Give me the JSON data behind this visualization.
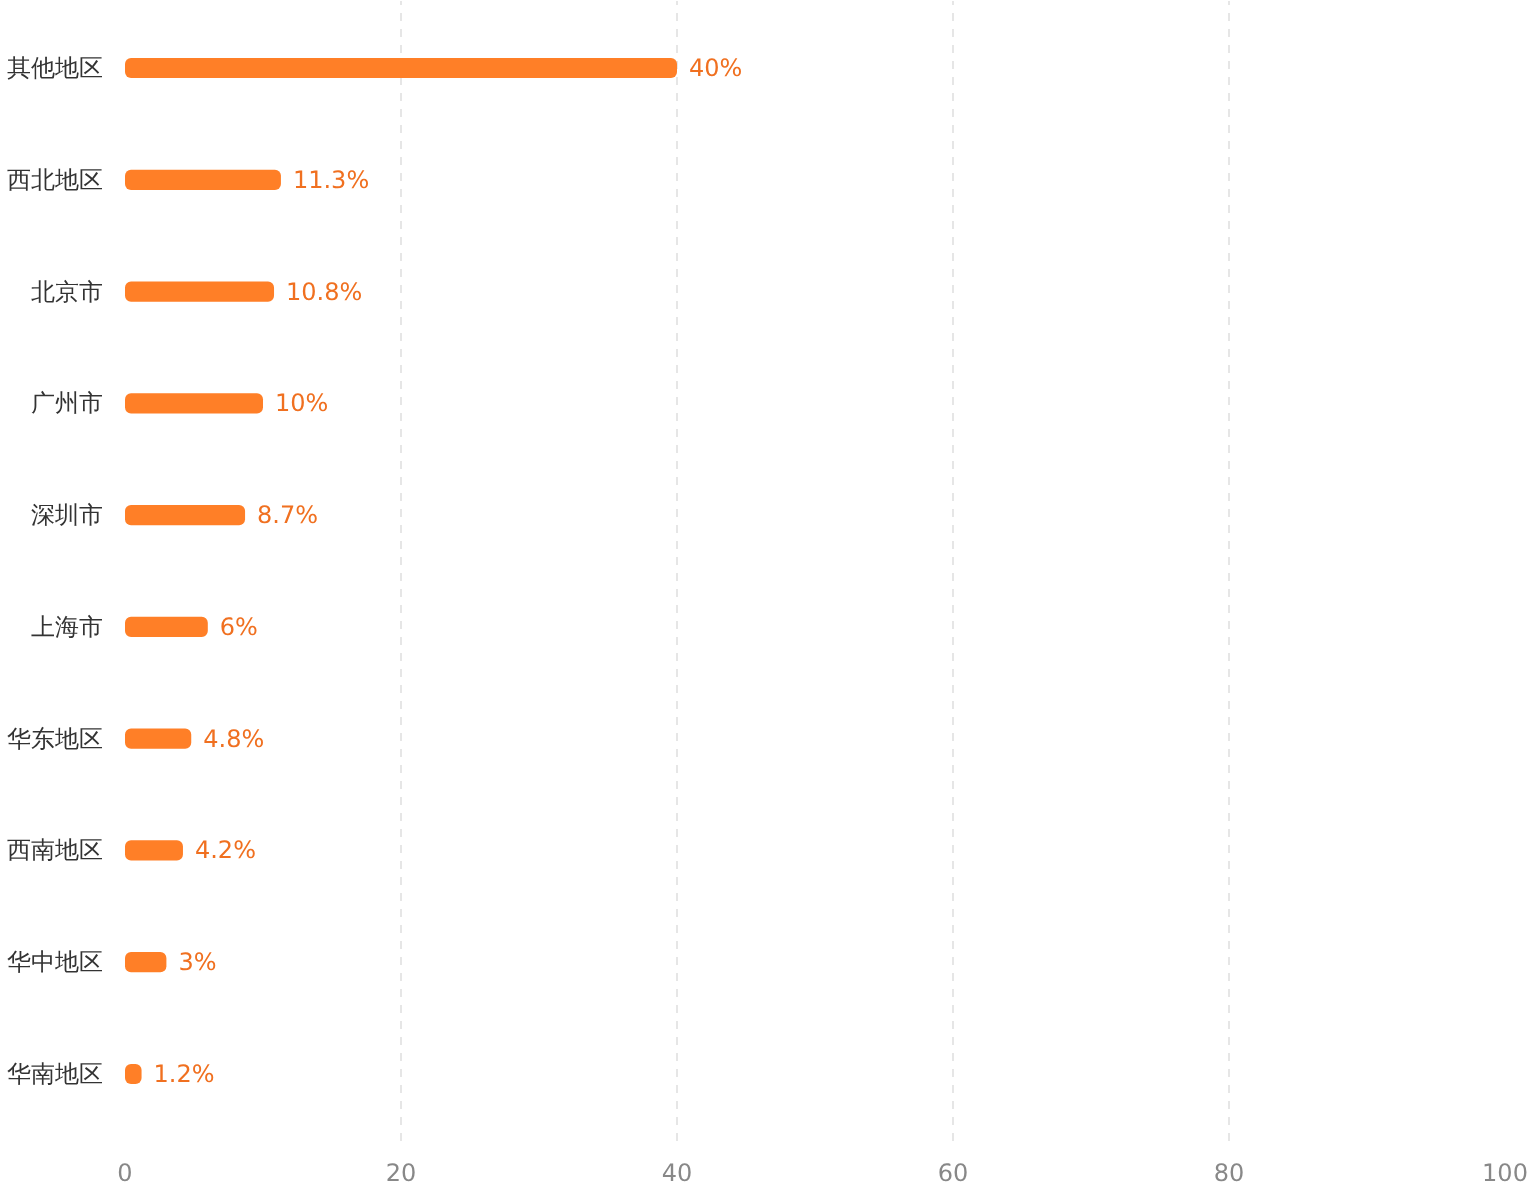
{
  "chart_data": {
    "type": "bar",
    "orientation": "horizontal",
    "categories": [
      "其他地区",
      "西北地区",
      "北京市",
      "广州市",
      "深圳市",
      "上海市",
      "华东地区",
      "西南地区",
      "华中地区",
      "华南地区"
    ],
    "values": [
      40,
      11.3,
      10.8,
      10,
      8.7,
      6,
      4.8,
      4.2,
      3,
      1.2
    ],
    "value_labels": [
      "40%",
      "11.3%",
      "10.8%",
      "10%",
      "8.7%",
      "6%",
      "4.8%",
      "4.2%",
      "3%",
      "1.2%"
    ],
    "color": "#ff7f27",
    "xlim": [
      0,
      100
    ],
    "xticks": [
      0,
      20,
      40,
      60,
      80,
      100
    ],
    "grid": "x",
    "legend": false
  }
}
